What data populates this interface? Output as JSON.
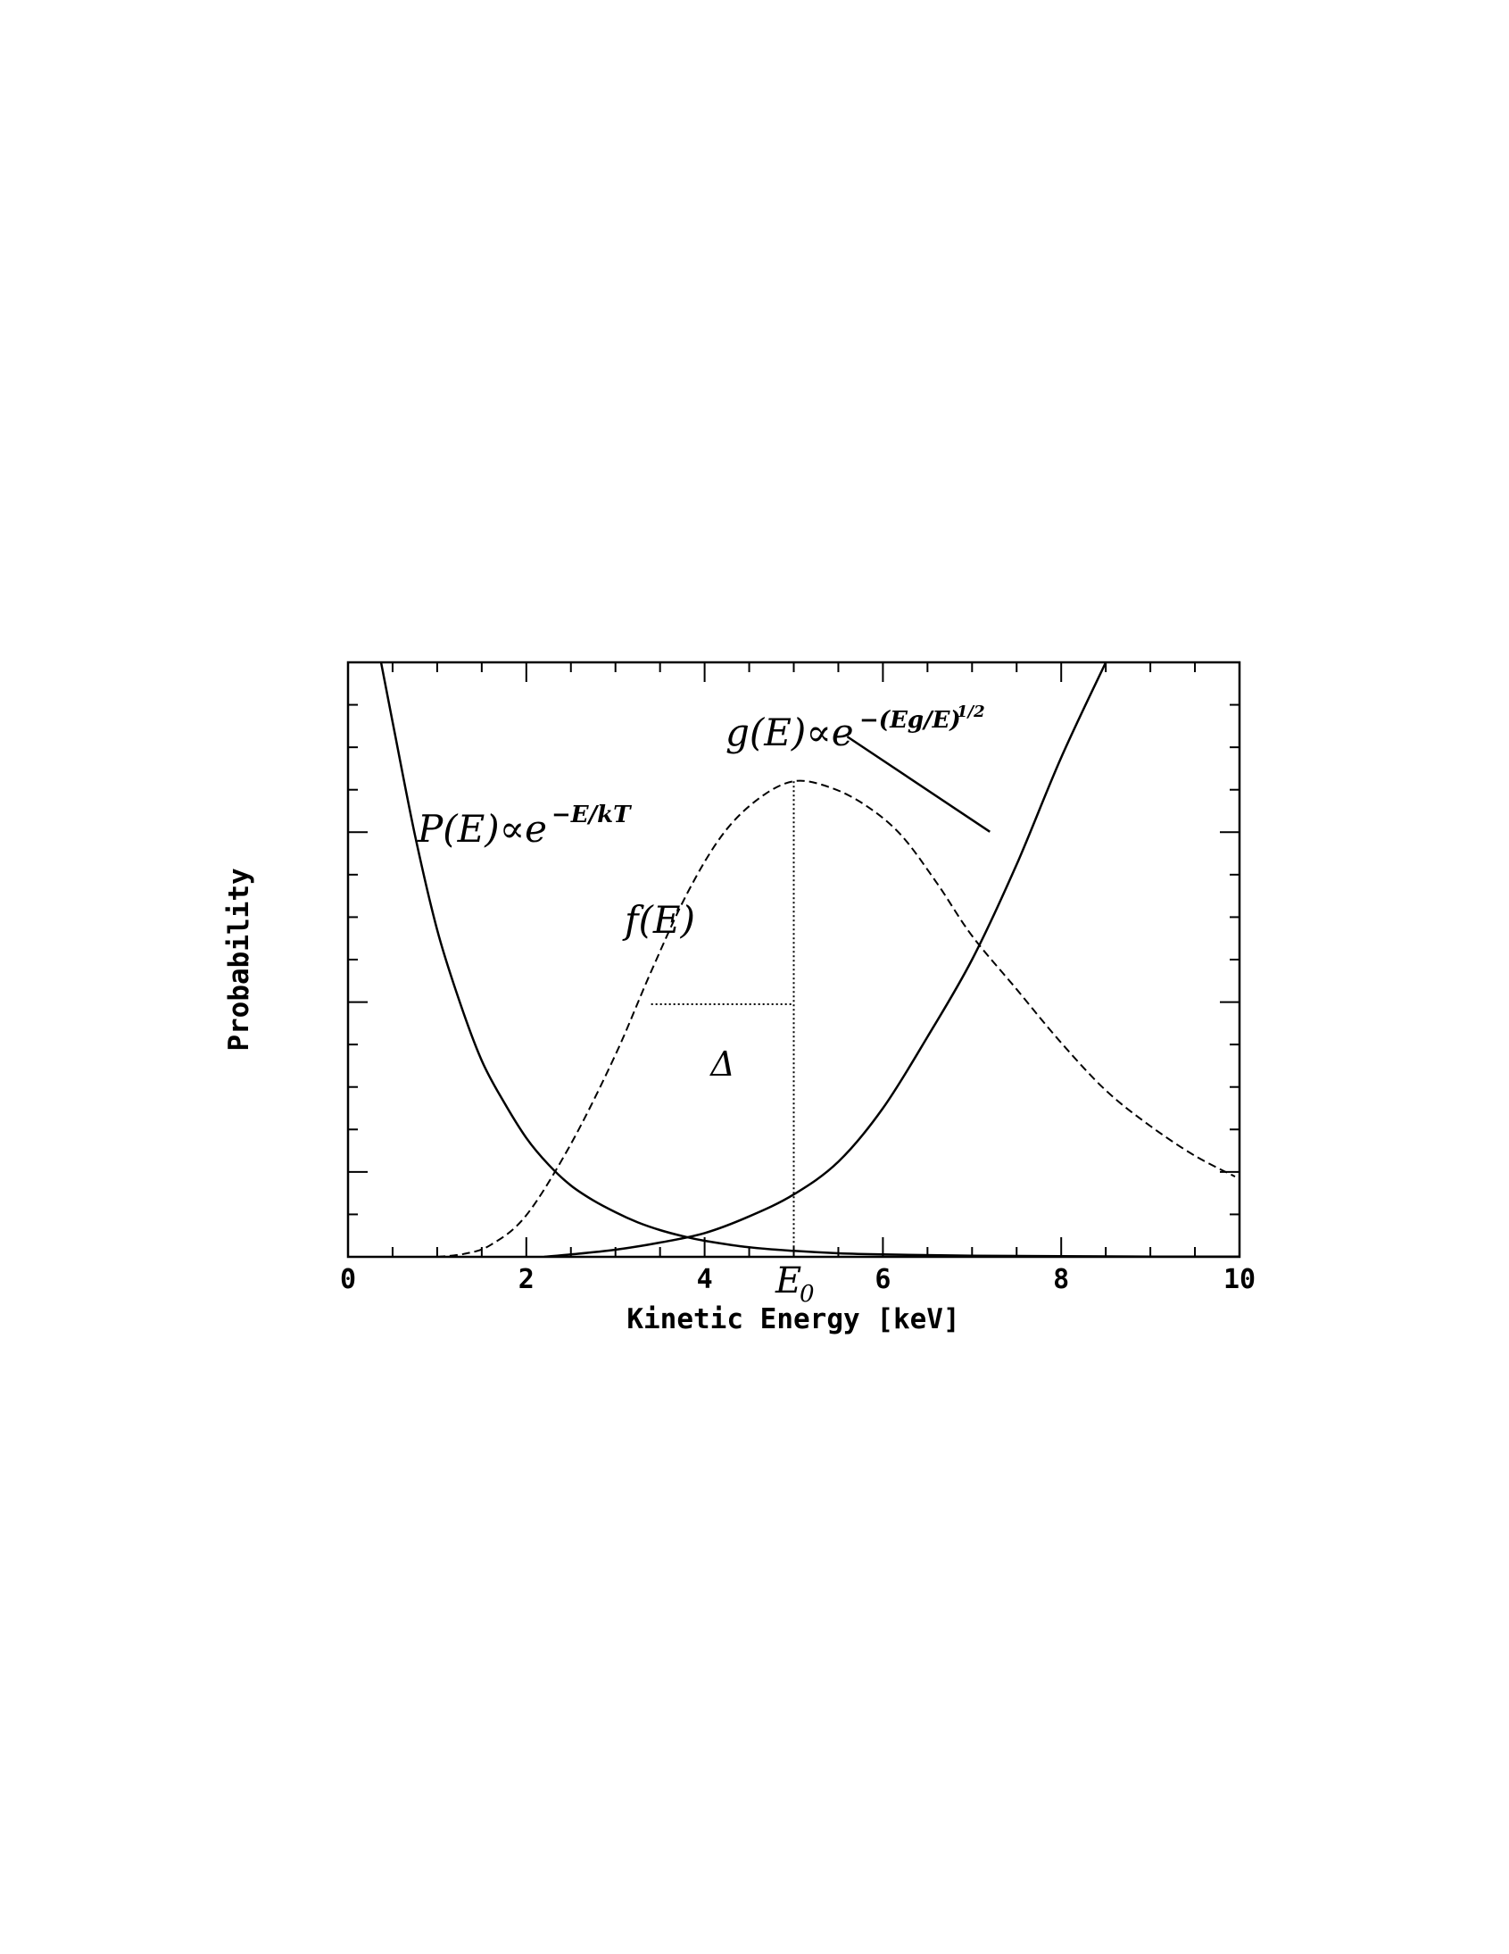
{
  "chart_data": {
    "type": "line",
    "title": "",
    "xlabel": "Kinetic Energy [keV]",
    "ylabel": "Probability",
    "xlim": [
      0,
      10
    ],
    "ylim": [
      0,
      1
    ],
    "x_ticks": [
      "0",
      "2",
      "4",
      "6",
      "8",
      "10"
    ],
    "x_ticks_values": [
      0,
      2,
      4,
      6,
      8,
      10
    ],
    "grid": false,
    "legend": "none",
    "series": [
      {
        "key": "P",
        "style": "solid",
        "x": [
          0.37,
          0.5,
          0.75,
          1.0,
          1.25,
          1.5,
          1.75,
          2.0,
          2.25,
          2.5,
          2.75,
          3.0,
          3.25,
          3.5,
          3.75,
          4.0,
          4.5,
          5.0,
          5.5,
          6.0,
          7.0,
          8.0,
          9.0,
          10.0
        ],
        "y": [
          1.0,
          0.9,
          0.71,
          0.55,
          0.43,
          0.33,
          0.26,
          0.2,
          0.155,
          0.12,
          0.095,
          0.075,
          0.058,
          0.045,
          0.035,
          0.027,
          0.016,
          0.01,
          0.006,
          0.004,
          0.002,
          0.001,
          0.0005,
          0.0003
        ]
      },
      {
        "key": "g",
        "style": "solid",
        "x": [
          2.2,
          2.5,
          3.0,
          3.5,
          4.0,
          4.5,
          5.0,
          5.5,
          6.0,
          6.5,
          7.0,
          7.5,
          8.0,
          8.5
        ],
        "y": [
          0.0,
          0.004,
          0.012,
          0.024,
          0.04,
          0.068,
          0.105,
          0.16,
          0.25,
          0.37,
          0.5,
          0.66,
          0.84,
          1.0
        ]
      },
      {
        "key": "f",
        "style": "dashed",
        "x": [
          1.0,
          1.3,
          1.6,
          2.0,
          2.5,
          3.0,
          3.4,
          3.8,
          4.2,
          4.6,
          5.0,
          5.4,
          5.8,
          6.2,
          6.6,
          7.0,
          7.5,
          8.0,
          8.5,
          9.0,
          9.5,
          9.95
        ],
        "y": [
          0.0,
          0.005,
          0.02,
          0.07,
          0.19,
          0.34,
          0.48,
          0.61,
          0.71,
          0.77,
          0.8,
          0.79,
          0.76,
          0.71,
          0.63,
          0.54,
          0.45,
          0.36,
          0.28,
          0.22,
          0.17,
          0.135
        ]
      }
    ],
    "annotations": {
      "P_label": {
        "main": "P(E)∝e",
        "sup": "−E/kT"
      },
      "g_label": {
        "main": "g(E)∝e",
        "sup": "−(Eg/E)",
        "sup2": "1/2"
      },
      "f_label": "f(E)",
      "delta_label": "Δ",
      "E0_label": "E",
      "E0_sub": "0",
      "E0_x": 5.0,
      "E0_y": 0.8,
      "delta_y": 0.425,
      "delta_x_left": 3.4,
      "pointer_line": {
        "from": [
          5.6,
          0.875
        ],
        "to": [
          7.2,
          0.715
        ]
      }
    }
  }
}
